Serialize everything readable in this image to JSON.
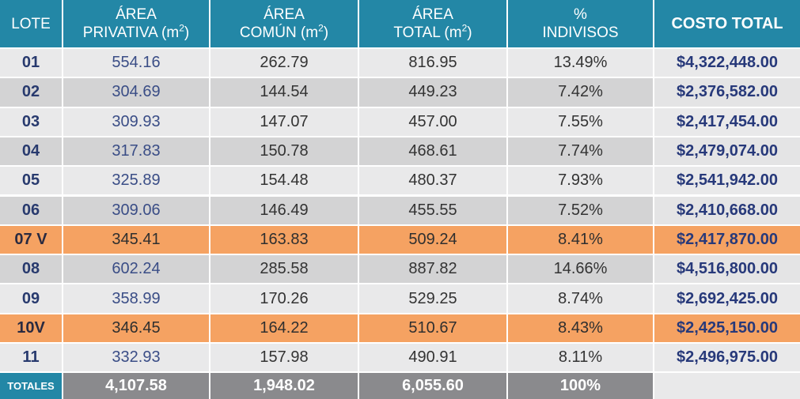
{
  "header": {
    "lote": "LOTE",
    "area_privativa_l1": "ÁREA",
    "area_privativa_l2": "PRIVATIVA (m",
    "area_comun_l1": "ÁREA",
    "area_comun_l2": "COMÚN (m",
    "area_total_l1": "ÁREA",
    "area_total_l2": "TOTAL (m",
    "superscript": "2",
    "close_paren": ")",
    "indivisos_l1": "%",
    "indivisos_l2": "INDIVISOS",
    "costo_total": "COSTO TOTAL"
  },
  "rows": [
    {
      "lote": "01",
      "privativa": "554.16",
      "comun": "262.79",
      "total": "816.95",
      "indivisos": "13.49%",
      "costo": "$4,322,448.00",
      "highlight": false
    },
    {
      "lote": "02",
      "privativa": "304.69",
      "comun": "144.54",
      "total": "449.23",
      "indivisos": "7.42%",
      "costo": "$2,376,582.00",
      "highlight": false
    },
    {
      "lote": "03",
      "privativa": "309.93",
      "comun": "147.07",
      "total": "457.00",
      "indivisos": "7.55%",
      "costo": "$2,417,454.00",
      "highlight": false
    },
    {
      "lote": "04",
      "privativa": "317.83",
      "comun": "150.78",
      "total": "468.61",
      "indivisos": "7.74%",
      "costo": "$2,479,074.00",
      "highlight": false
    },
    {
      "lote": "05",
      "privativa": "325.89",
      "comun": "154.48",
      "total": "480.37",
      "indivisos": "7.93%",
      "costo": "$2,541,942.00",
      "highlight": false
    },
    {
      "lote": "06",
      "privativa": "309.06",
      "comun": "146.49",
      "total": "455.55",
      "indivisos": "7.52%",
      "costo": "$2,410,668.00",
      "highlight": false
    },
    {
      "lote": "07 V",
      "privativa": "345.41",
      "comun": "163.83",
      "total": "509.24",
      "indivisos": "8.41%",
      "costo": "$2,417,870.00",
      "highlight": true
    },
    {
      "lote": "08",
      "privativa": "602.24",
      "comun": "285.58",
      "total": "887.82",
      "indivisos": "14.66%",
      "costo": "$4,516,800.00",
      "highlight": false
    },
    {
      "lote": "09",
      "privativa": "358.99",
      "comun": "170.26",
      "total": "529.25",
      "indivisos": "8.74%",
      "costo": "$2,692,425.00",
      "highlight": false
    },
    {
      "lote": "10V",
      "privativa": "346.45",
      "comun": "164.22",
      "total": "510.67",
      "indivisos": "8.43%",
      "costo": "$2,425,150.00",
      "highlight": true
    },
    {
      "lote": "11",
      "privativa": "332.93",
      "comun": "157.98",
      "total": "490.91",
      "indivisos": "8.11%",
      "costo": "$2,496,975.00",
      "highlight": false
    }
  ],
  "totals": {
    "label": "TOTALES",
    "privativa": "4,107.58",
    "comun": "1,948.02",
    "total": "6,055.60",
    "indivisos": "100%",
    "costo": ""
  },
  "colors": {
    "header_blue": "#2387a6",
    "highlight_orange": "#f5a262",
    "totals_gray": "#8a8a8d",
    "cost_text": "#27397a"
  }
}
